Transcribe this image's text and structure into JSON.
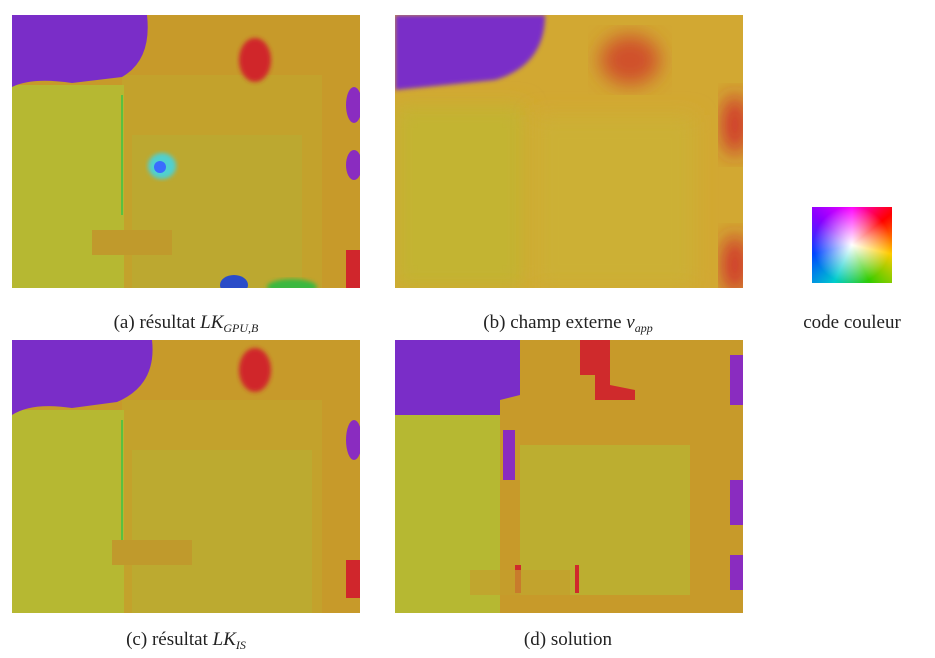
{
  "captions": [
    {
      "label": "(a) résultat",
      "symbol": "LK",
      "subscript": "GPU,B"
    },
    {
      "label": "(b) champ externe",
      "symbol": "v",
      "subscript": "app"
    },
    {
      "label": "(c) résultat",
      "symbol": "LK",
      "subscript": "IS"
    },
    {
      "label": "(d) solution"
    }
  ],
  "legend": "code couleur"
}
